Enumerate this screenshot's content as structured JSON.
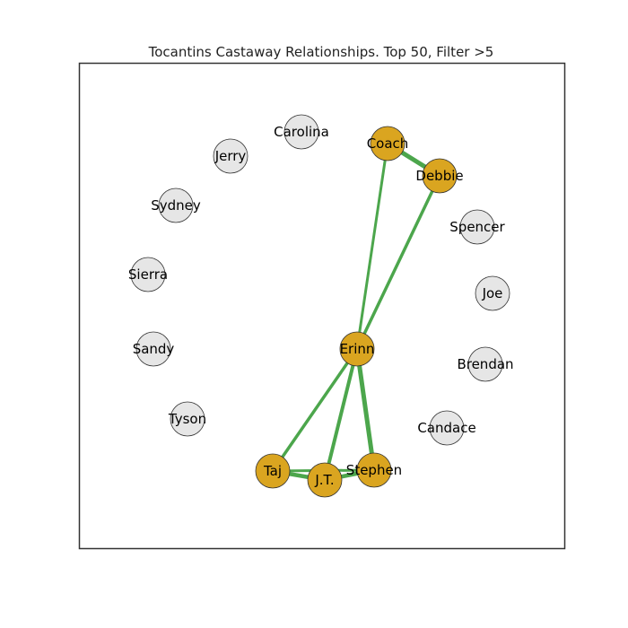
{
  "title": "Tocantins Castaway Relationships. Top 50, Filter >5",
  "colors": {
    "highlight_node": "#DAA520",
    "plain_node": "#E6E6E6",
    "node_stroke": "#333333",
    "edge": "#4CA64C",
    "frame": "#333333"
  },
  "nodes": [
    {
      "id": "carolina",
      "label": "Carolina",
      "highlight": false
    },
    {
      "id": "coach",
      "label": "Coach",
      "highlight": true
    },
    {
      "id": "jerry",
      "label": "Jerry",
      "highlight": false
    },
    {
      "id": "debbie",
      "label": "Debbie",
      "highlight": true
    },
    {
      "id": "sydney",
      "label": "Sydney",
      "highlight": false
    },
    {
      "id": "spencer",
      "label": "Spencer",
      "highlight": false
    },
    {
      "id": "sierra",
      "label": "Sierra",
      "highlight": false
    },
    {
      "id": "joe",
      "label": "Joe",
      "highlight": false
    },
    {
      "id": "sandy",
      "label": "Sandy",
      "highlight": false
    },
    {
      "id": "erinn",
      "label": "Erinn",
      "highlight": true
    },
    {
      "id": "brendan",
      "label": "Brendan",
      "highlight": false
    },
    {
      "id": "tyson",
      "label": "Tyson",
      "highlight": false
    },
    {
      "id": "candace",
      "label": "Candace",
      "highlight": false
    },
    {
      "id": "taj",
      "label": "Taj",
      "highlight": true
    },
    {
      "id": "stephen",
      "label": "Stephen",
      "highlight": true
    },
    {
      "id": "jt",
      "label": "J.T.",
      "highlight": true
    }
  ],
  "edges": [
    {
      "source": "coach",
      "target": "debbie",
      "weight": 5
    },
    {
      "source": "coach",
      "target": "erinn",
      "weight": 3
    },
    {
      "source": "debbie",
      "target": "erinn",
      "weight": 3.5
    },
    {
      "source": "erinn",
      "target": "taj",
      "weight": 3.5
    },
    {
      "source": "erinn",
      "target": "jt",
      "weight": 4
    },
    {
      "source": "erinn",
      "target": "stephen",
      "weight": 5
    },
    {
      "source": "taj",
      "target": "jt",
      "weight": 4.5
    },
    {
      "source": "jt",
      "target": "stephen",
      "weight": 4.5
    },
    {
      "source": "taj",
      "target": "stephen",
      "weight": 3
    }
  ]
}
